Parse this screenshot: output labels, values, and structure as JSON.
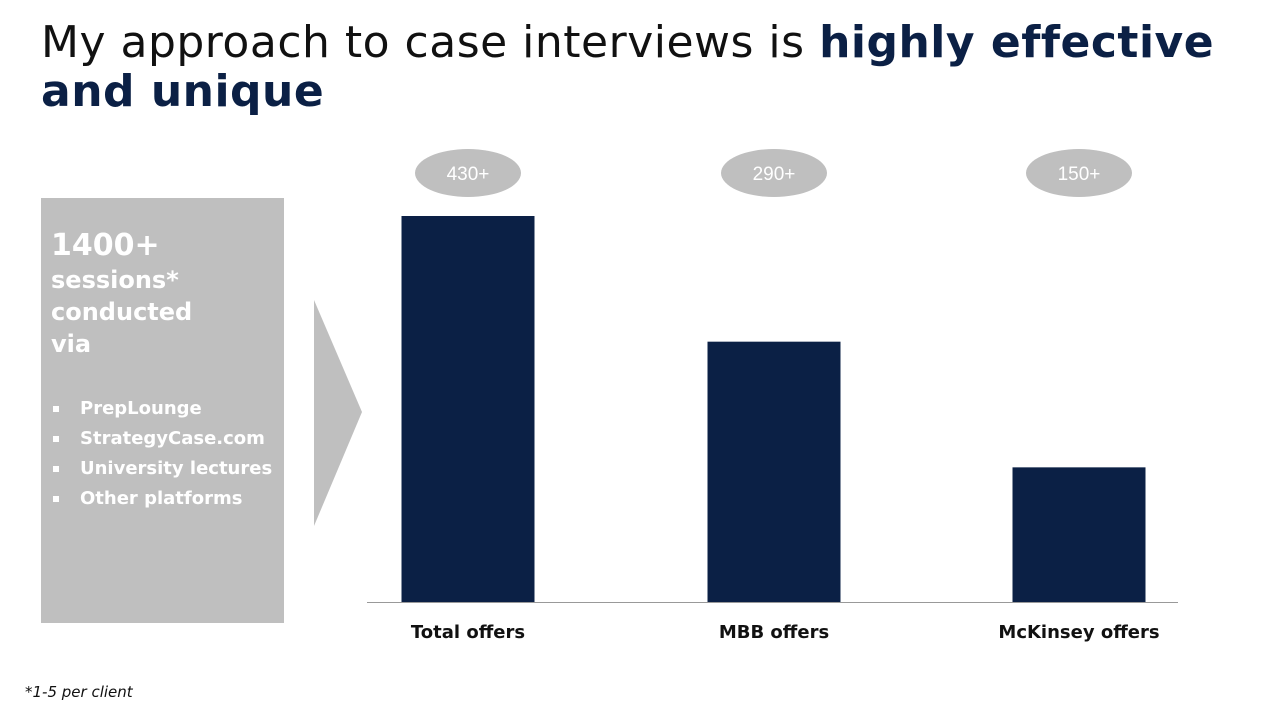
{
  "title": {
    "part1": "My approach to case interviews is ",
    "part2": "highly effective",
    "part3": "and unique"
  },
  "sessions_box": {
    "count": "1400+",
    "line1": "sessions*",
    "line2": "conducted",
    "line3": "via",
    "items": [
      "PrepLounge",
      "StrategyCase.com",
      "University lectures",
      "Other platforms"
    ]
  },
  "chart_data": {
    "type": "bar",
    "categories": [
      "Total offers",
      "MBB offers",
      "McKinsey offers"
    ],
    "values": [
      430,
      290,
      150
    ],
    "data_labels": [
      "430+",
      "290+",
      "150+"
    ],
    "ylim": [
      0,
      430
    ],
    "title": "",
    "xlabel": "",
    "ylabel": "",
    "bar_color": "#0b2045",
    "label_bubble_color": "#bfbfbf"
  },
  "footnote": "*1-5 per client",
  "colors": {
    "accent": "#0b2045",
    "panel": "#bfbfbf"
  }
}
